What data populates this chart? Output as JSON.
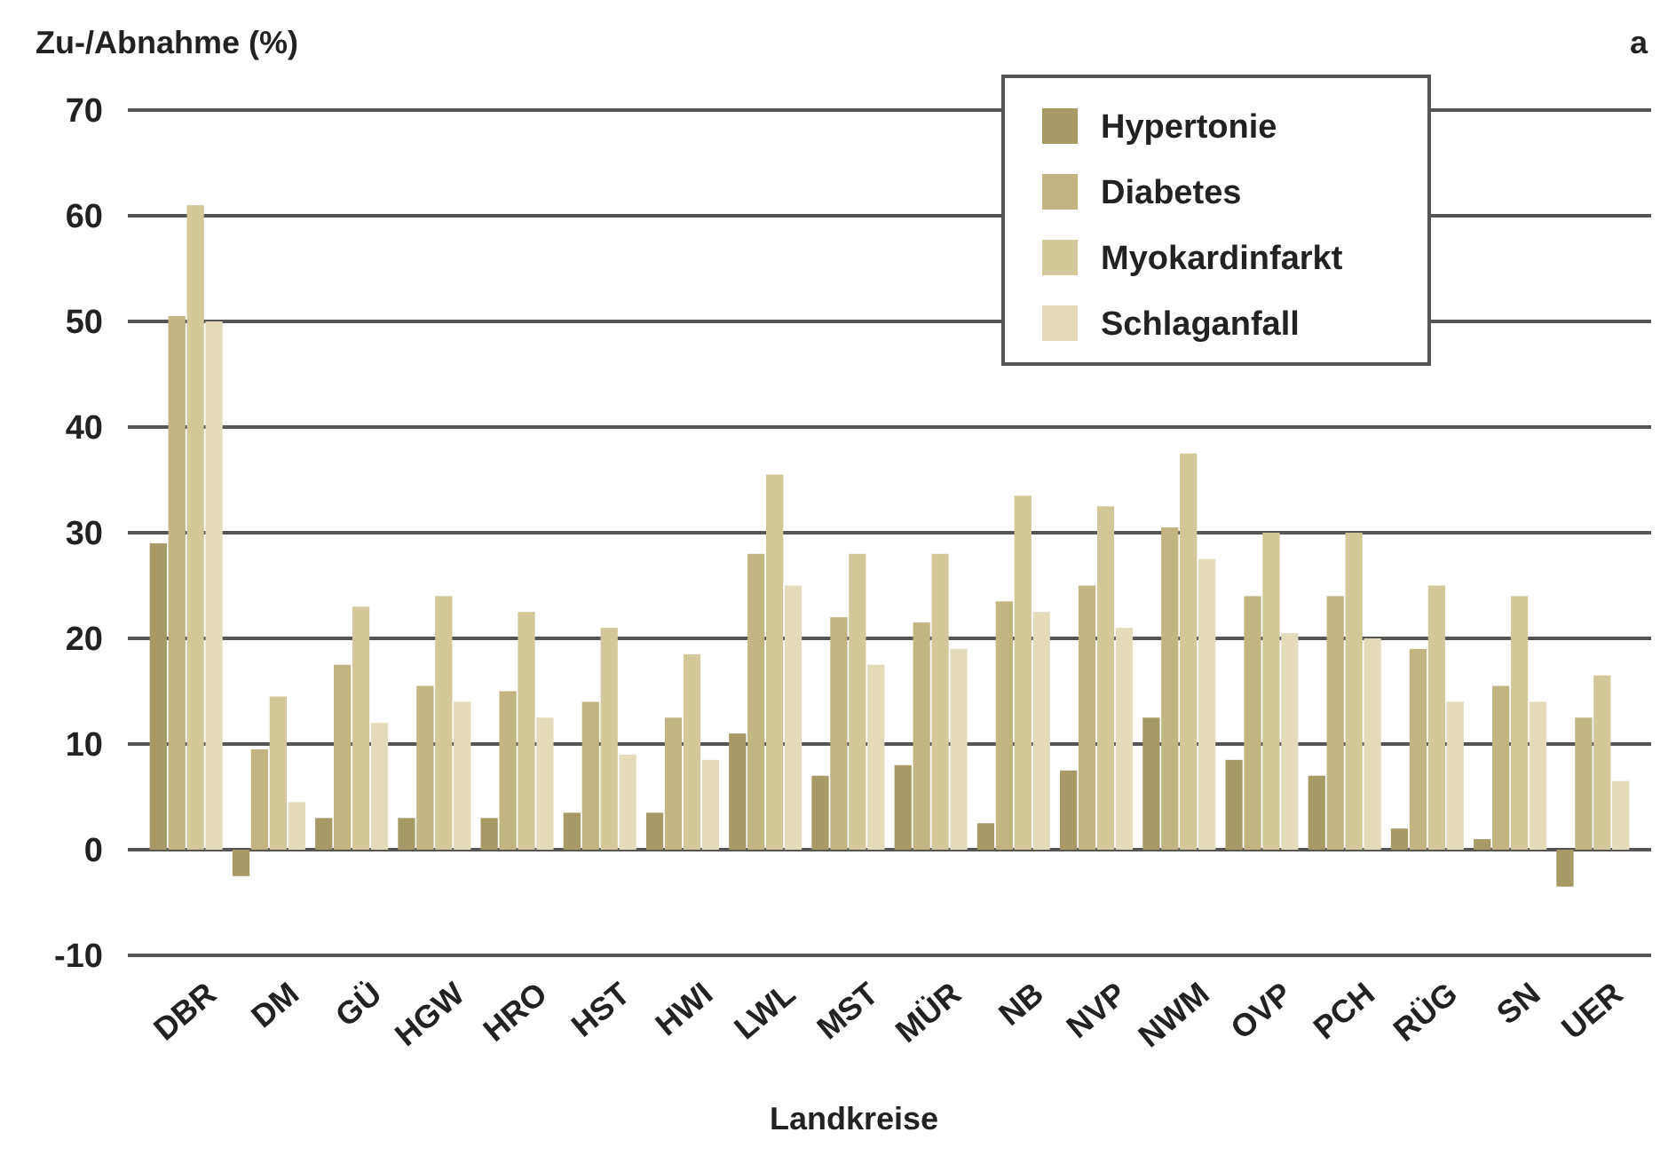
{
  "chart_data": {
    "type": "bar",
    "xlabel": "Landkreise",
    "ylabel": "Zu-/Abnahme (%)",
    "annotations": [
      "a"
    ],
    "categories": [
      "DBR",
      "DM",
      "GÜ",
      "HGW",
      "HRO",
      "HST",
      "HWI",
      "LWL",
      "MST",
      "MÜR",
      "NB",
      "NVP",
      "NWM",
      "OVP",
      "PCH",
      "RÜG",
      "SN",
      "UER"
    ],
    "series": [
      {
        "name": "Hypertonie",
        "color": "#a89a66",
        "values": [
          29,
          -2.5,
          3,
          3,
          3,
          3.5,
          3.5,
          11,
          7,
          8,
          2.5,
          7.5,
          12.5,
          8.5,
          7,
          2,
          1,
          -3.5
        ]
      },
      {
        "name": "Diabetes",
        "color": "#c2b582",
        "values": [
          50.5,
          9.5,
          17.5,
          15.5,
          15,
          14,
          12.5,
          28,
          22,
          21.5,
          23.5,
          25,
          30.5,
          24,
          24,
          19,
          15.5,
          12.5
        ]
      },
      {
        "name": "Myokardinfarkt",
        "color": "#d3c899",
        "values": [
          61,
          14.5,
          23,
          24,
          22.5,
          21,
          18.5,
          35.5,
          28,
          28,
          33.5,
          32.5,
          37.5,
          30,
          30,
          25,
          24,
          16.5
        ]
      },
      {
        "name": "Schlaganfall",
        "color": "#e3dbb9",
        "values": [
          50,
          4.5,
          12,
          14,
          12.5,
          9,
          8.5,
          25,
          17.5,
          19,
          22.5,
          21,
          27.5,
          20.5,
          20,
          14,
          14,
          6.5
        ]
      }
    ],
    "ylim": [
      -10,
      70
    ],
    "yticks": [
      -10,
      0,
      10,
      20,
      30,
      40,
      50,
      60,
      70
    ],
    "grid": "y",
    "legend": "top right"
  }
}
